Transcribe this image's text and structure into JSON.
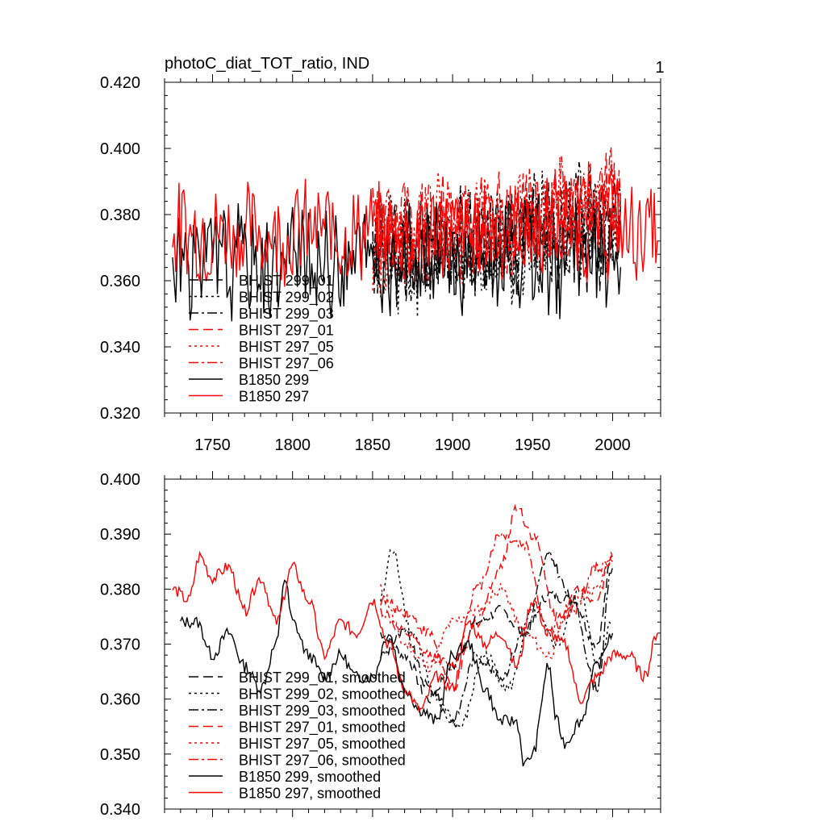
{
  "figure": {
    "page_number": "1"
  },
  "chart_data": [
    {
      "type": "line",
      "title": "photoC_diat_TOT_ratio, IND",
      "xlabel": "",
      "ylabel": "",
      "xlim": [
        1720,
        2030
      ],
      "ylim": [
        0.32,
        0.42
      ],
      "xticks": [
        1750,
        1800,
        1850,
        1900,
        1950,
        2000
      ],
      "xtick_labels": [
        "1750",
        "1800",
        "1850",
        "1900",
        "1950",
        "2000"
      ],
      "yticks": [
        0.32,
        0.34,
        0.36,
        0.38,
        0.4,
        0.42
      ],
      "ytick_labels": [
        "0.320",
        "0.340",
        "0.360",
        "0.380",
        "0.400",
        "0.420"
      ],
      "legend_position": "lower-left",
      "series": [
        {
          "name": "BHIST 299_01",
          "color": "#000000",
          "dash": "long",
          "x_start": 1850,
          "x_end": 2005,
          "mean": 0.369,
          "trend": 0.008,
          "amp": 0.015,
          "seed": 11
        },
        {
          "name": "BHIST 299_02",
          "color": "#000000",
          "dash": "dot",
          "x_start": 1850,
          "x_end": 2005,
          "mean": 0.368,
          "trend": 0.008,
          "amp": 0.016,
          "seed": 12
        },
        {
          "name": "BHIST 299_03",
          "color": "#000000",
          "dash": "dashdot",
          "x_start": 1850,
          "x_end": 2005,
          "mean": 0.369,
          "trend": 0.009,
          "amp": 0.015,
          "seed": 13
        },
        {
          "name": "BHIST 297_01",
          "color": "#ff0000",
          "dash": "long",
          "x_start": 1850,
          "x_end": 2005,
          "mean": 0.372,
          "trend": 0.012,
          "amp": 0.014,
          "seed": 21
        },
        {
          "name": "BHIST 297_05",
          "color": "#ff0000",
          "dash": "dot",
          "x_start": 1850,
          "x_end": 2005,
          "mean": 0.372,
          "trend": 0.011,
          "amp": 0.014,
          "seed": 22
        },
        {
          "name": "BHIST 297_06",
          "color": "#ff0000",
          "dash": "dashdot",
          "x_start": 1850,
          "x_end": 2005,
          "mean": 0.373,
          "trend": 0.012,
          "amp": 0.014,
          "seed": 23
        },
        {
          "name": "B1850 299",
          "color": "#000000",
          "dash": "solid",
          "x_start": 1725,
          "x_end": 2005,
          "mean": 0.366,
          "trend": 0.0,
          "amp": 0.015,
          "seed": 31
        },
        {
          "name": "B1850 297",
          "color": "#ff0000",
          "dash": "solid",
          "x_start": 1725,
          "x_end": 2028,
          "mean": 0.375,
          "trend": 0.0,
          "amp": 0.013,
          "seed": 32
        }
      ]
    },
    {
      "type": "line",
      "title": "",
      "xlabel": "",
      "ylabel": "",
      "xlim": [
        1720,
        2030
      ],
      "ylim": [
        0.34,
        0.4
      ],
      "xticks": [
        1750,
        1800,
        1850,
        1900,
        1950,
        2000
      ],
      "yticks": [
        0.34,
        0.35,
        0.36,
        0.37,
        0.38,
        0.39,
        0.4
      ],
      "ytick_labels": [
        "0.340",
        "0.350",
        "0.360",
        "0.370",
        "0.380",
        "0.390",
        "0.400"
      ],
      "legend_position": "lower-left",
      "series": [
        {
          "name": "BHIST 299_01, smoothed",
          "color": "#000000",
          "dash": "long",
          "x": [
            1855,
            1870,
            1885,
            1900,
            1915,
            1930,
            1945,
            1960,
            1975,
            1990,
            2000
          ],
          "y": [
            0.372,
            0.368,
            0.36,
            0.366,
            0.374,
            0.376,
            0.372,
            0.379,
            0.378,
            0.37,
            0.386
          ]
        },
        {
          "name": "BHIST 299_02, smoothed",
          "color": "#000000",
          "dash": "dot",
          "x": [
            1855,
            1862,
            1875,
            1890,
            1905,
            1920,
            1935,
            1950,
            1965,
            1980,
            1990,
            2000
          ],
          "y": [
            0.378,
            0.387,
            0.372,
            0.36,
            0.355,
            0.368,
            0.362,
            0.376,
            0.37,
            0.38,
            0.366,
            0.374
          ]
        },
        {
          "name": "BHIST 299_03, smoothed",
          "color": "#000000",
          "dash": "dashdot",
          "x": [
            1855,
            1870,
            1885,
            1900,
            1915,
            1930,
            1945,
            1960,
            1975,
            1990,
            2000
          ],
          "y": [
            0.368,
            0.372,
            0.362,
            0.356,
            0.368,
            0.364,
            0.372,
            0.386,
            0.378,
            0.362,
            0.384
          ]
        },
        {
          "name": "BHIST 297_01, smoothed",
          "color": "#ff0000",
          "dash": "long",
          "x": [
            1855,
            1870,
            1885,
            1900,
            1915,
            1930,
            1940,
            1950,
            1965,
            1980,
            1990,
            2000
          ],
          "y": [
            0.378,
            0.376,
            0.372,
            0.362,
            0.374,
            0.384,
            0.395,
            0.39,
            0.375,
            0.38,
            0.378,
            0.387
          ]
        },
        {
          "name": "BHIST 297_05, smoothed",
          "color": "#ff0000",
          "dash": "dot",
          "x": [
            1855,
            1870,
            1885,
            1900,
            1915,
            1930,
            1945,
            1960,
            1975,
            1990,
            2000
          ],
          "y": [
            0.38,
            0.37,
            0.366,
            0.374,
            0.376,
            0.38,
            0.372,
            0.368,
            0.378,
            0.38,
            0.386
          ]
        },
        {
          "name": "BHIST 297_06, smoothed",
          "color": "#ff0000",
          "dash": "dashdot",
          "x": [
            1855,
            1870,
            1885,
            1900,
            1915,
            1930,
            1945,
            1960,
            1975,
            1990,
            2000
          ],
          "y": [
            0.376,
            0.372,
            0.368,
            0.366,
            0.38,
            0.39,
            0.388,
            0.372,
            0.376,
            0.384,
            0.385
          ]
        },
        {
          "name": "B1850 299, smoothed",
          "color": "#000000",
          "dash": "solid",
          "x": [
            1730,
            1740,
            1750,
            1760,
            1770,
            1780,
            1790,
            1795,
            1800,
            1810,
            1820,
            1830,
            1840,
            1850,
            1860,
            1870,
            1880,
            1890,
            1900,
            1910,
            1920,
            1930,
            1940,
            1945,
            1950,
            1960,
            1965,
            1970,
            1980,
            1990,
            2000
          ],
          "y": [
            0.374,
            0.374,
            0.368,
            0.372,
            0.366,
            0.362,
            0.37,
            0.382,
            0.374,
            0.368,
            0.364,
            0.368,
            0.364,
            0.364,
            0.372,
            0.362,
            0.358,
            0.356,
            0.368,
            0.37,
            0.362,
            0.356,
            0.356,
            0.348,
            0.35,
            0.366,
            0.356,
            0.352,
            0.356,
            0.366,
            0.372
          ]
        },
        {
          "name": "B1850 297, smoothed",
          "color": "#ff0000",
          "dash": "solid",
          "x": [
            1725,
            1735,
            1742,
            1750,
            1760,
            1770,
            1780,
            1790,
            1800,
            1810,
            1820,
            1830,
            1840,
            1850,
            1860,
            1870,
            1880,
            1890,
            1900,
            1910,
            1920,
            1930,
            1940,
            1950,
            1960,
            1970,
            1980,
            1990,
            2000,
            2010,
            2020,
            2028
          ],
          "y": [
            0.38,
            0.378,
            0.386,
            0.382,
            0.384,
            0.376,
            0.382,
            0.374,
            0.384,
            0.378,
            0.368,
            0.374,
            0.372,
            0.378,
            0.37,
            0.362,
            0.358,
            0.364,
            0.362,
            0.374,
            0.37,
            0.372,
            0.366,
            0.378,
            0.372,
            0.37,
            0.36,
            0.364,
            0.368,
            0.368,
            0.364,
            0.372
          ]
        }
      ]
    }
  ]
}
